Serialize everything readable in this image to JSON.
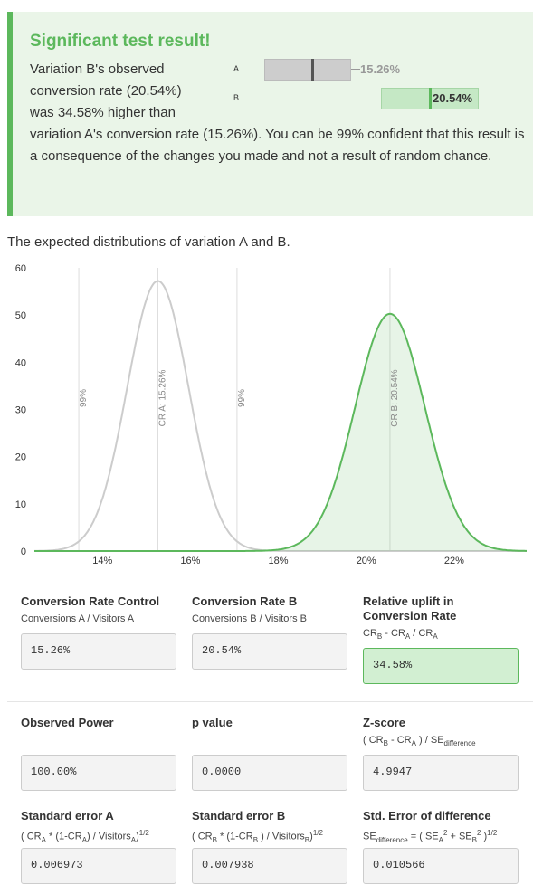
{
  "banner": {
    "title": "Significant test result!",
    "text_line1": "Variation B's observed",
    "text_line2": "conversion rate (20.54%)",
    "text_line3": "was 34.58% higher than",
    "text_rest": "variation A's conversion rate (15.26%). You can be 99% confident that this result is a consequence of the changes you made and not a result of random chance.",
    "mini_a_label": "A",
    "mini_b_label": "B",
    "mini_a_value": "15.26%",
    "mini_b_value": "20.54%"
  },
  "chart_title": "The expected distributions of variation A and B.",
  "chart_data": {
    "type": "area",
    "x_ticks": [
      "14%",
      "16%",
      "18%",
      "20%",
      "22%"
    ],
    "x_tick_values": [
      0.14,
      0.16,
      0.18,
      0.2,
      0.22
    ],
    "xlim": [
      0.1245,
      0.2365
    ],
    "y_ticks": [
      "0",
      "10",
      "20",
      "30",
      "40",
      "50",
      "60"
    ],
    "ylim": [
      0,
      60
    ],
    "series": [
      {
        "mean": 0.1526,
        "se": 0.006973,
        "color": "#cccccc"
      },
      {
        "mean": 0.2054,
        "se": 0.007938,
        "color": "#5cb85c"
      }
    ],
    "annotations": [
      {
        "x": 0.1346,
        "label": "99%"
      },
      {
        "x": 0.1526,
        "label": "CR A: 15.26%"
      },
      {
        "x": 0.1706,
        "label": "99%"
      },
      {
        "x": 0.2054,
        "label": "CR B: 20.54%"
      }
    ],
    "grid": false
  },
  "cards": {
    "cr_control": {
      "title": "Conversion Rate Control",
      "sub": "Conversions A / Visitors A",
      "value": "15.26%"
    },
    "cr_b": {
      "title": "Conversion Rate B",
      "sub": "Conversions B / Visitors B",
      "value": "20.54%"
    },
    "uplift": {
      "title_line1": "Relative uplift in",
      "title_line2": "Conversion Rate",
      "value": "34.58%"
    },
    "power": {
      "title": "Observed Power",
      "value": "100.00%"
    },
    "pvalue": {
      "title": "p value",
      "value": "0.0000"
    },
    "zscore": {
      "title": "Z-score",
      "value": "4.9947"
    },
    "se_a": {
      "title": "Standard error A",
      "value": "0.006973"
    },
    "se_b": {
      "title": "Standard error B",
      "value": "0.007938"
    },
    "se_diff": {
      "title": "Std. Error of difference",
      "value": "0.010566"
    }
  },
  "colors": {
    "accent": "#5cb85c",
    "grey_curve": "#cccccc",
    "banner_bg": "#eaf5e8"
  }
}
